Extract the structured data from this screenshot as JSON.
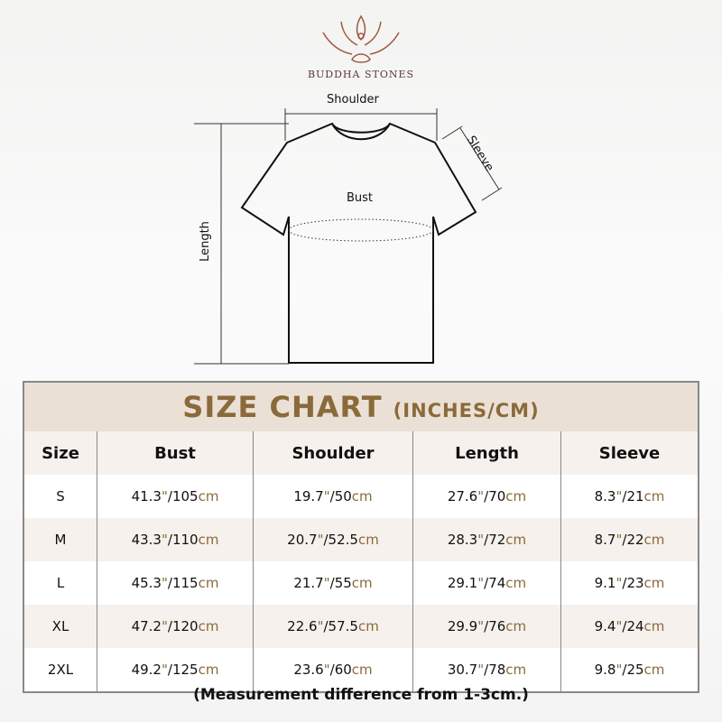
{
  "brand": "BUDDHA STONES",
  "diagram": {
    "shoulder": "Shoulder",
    "sleeve": "Sleeve",
    "bust": "Bust",
    "length": "Length"
  },
  "chart": {
    "title": "SIZE CHART",
    "units": "(INCHES/CM)",
    "headers": [
      "Size",
      "Bust",
      "Shoulder",
      "Length",
      "Sleeve"
    ],
    "rows": [
      {
        "size": "S",
        "bust": [
          "41.3",
          "105"
        ],
        "shoulder": [
          "19.7",
          "50"
        ],
        "length": [
          "27.6",
          "70"
        ],
        "sleeve": [
          "8.3",
          "21"
        ]
      },
      {
        "size": "M",
        "bust": [
          "43.3",
          "110"
        ],
        "shoulder": [
          "20.7",
          "52.5"
        ],
        "length": [
          "28.3",
          "72"
        ],
        "sleeve": [
          "8.7",
          "22"
        ]
      },
      {
        "size": "L",
        "bust": [
          "45.3",
          "115"
        ],
        "shoulder": [
          "21.7",
          "55"
        ],
        "length": [
          "29.1",
          "74"
        ],
        "sleeve": [
          "9.1",
          "23"
        ]
      },
      {
        "size": "XL",
        "bust": [
          "47.2",
          "120"
        ],
        "shoulder": [
          "22.6",
          "57.5"
        ],
        "length": [
          "29.9",
          "76"
        ],
        "sleeve": [
          "9.4",
          "24"
        ]
      },
      {
        "size": "2XL",
        "bust": [
          "49.2",
          "125"
        ],
        "shoulder": [
          "23.6",
          "60"
        ],
        "length": [
          "30.7",
          "78"
        ],
        "sleeve": [
          "9.8",
          "25"
        ]
      }
    ]
  },
  "note": "(Measurement difference from 1-3cm.)",
  "colors": {
    "accent": "#8a6a3a",
    "header_bg": "#ebe0d6",
    "row_alt": "#f6f1ec"
  }
}
